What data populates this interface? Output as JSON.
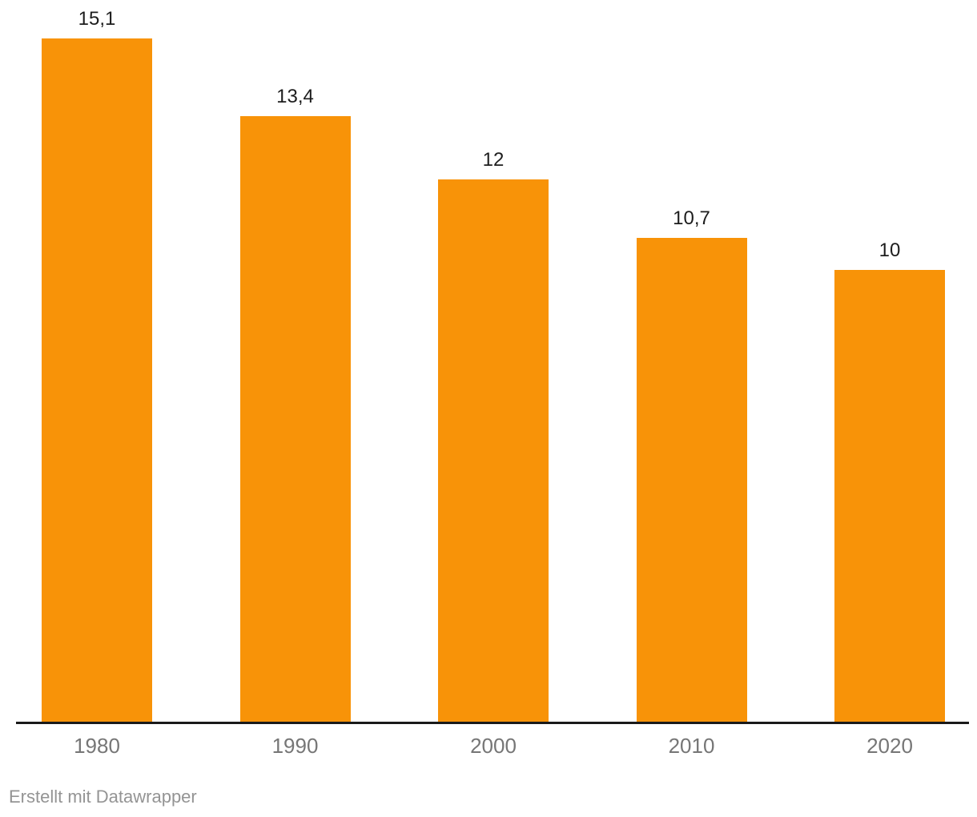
{
  "chart_data": {
    "type": "bar",
    "categories": [
      "1980",
      "1990",
      "2000",
      "2010",
      "2020"
    ],
    "values": [
      15.1,
      13.4,
      12,
      10.7,
      10
    ],
    "value_labels": [
      "15,1",
      "13,4",
      "12",
      "10,7",
      "10"
    ],
    "title": "",
    "xlabel": "",
    "ylabel": "",
    "ylim": [
      0,
      16
    ],
    "grid": false,
    "legend": "none",
    "colors": {
      "bar": "#F89308",
      "axis_line": "#1A1A1A",
      "value_label": "#1D1D1D",
      "tick_label": "#767676"
    }
  },
  "footer": {
    "attribution": "Erstellt mit Datawrapper"
  }
}
